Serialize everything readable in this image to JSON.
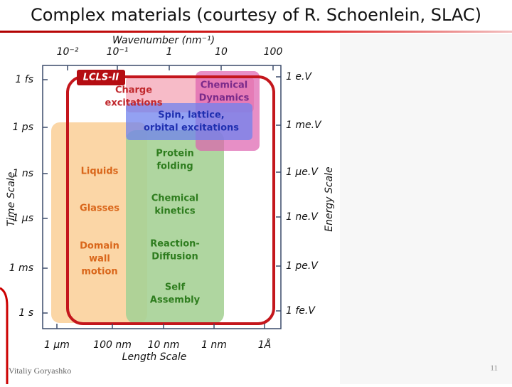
{
  "header": {
    "title": "Complex materials (courtesy of R. Schoenlein, SLAC)"
  },
  "diagram": {
    "top_axis": {
      "label": "Wavenumber (nm⁻¹)",
      "ticks": [
        "10⁻²",
        "10⁻¹",
        "1",
        "10",
        "100"
      ]
    },
    "left_axis": {
      "label": "Time Scale",
      "ticks": [
        "1 fs",
        "1 ps",
        "1 ns",
        "1 μs",
        "1 ms",
        "1 s"
      ]
    },
    "right_axis": {
      "label": "Energy Scale",
      "ticks": [
        "1 e.V",
        "1 me.V",
        "1 μe.V",
        "1 ne.V",
        "1 pe.V",
        "1 fe.V"
      ]
    },
    "bottom_axis": {
      "label": "Length Scale",
      "ticks": [
        "1 μm",
        "100 nm",
        "10 nm",
        "1 nm",
        "1Å"
      ]
    },
    "facility": "LCLS-II",
    "regions": [
      {
        "label": [
          "Charge",
          "excitations"
        ]
      },
      {
        "label": [
          "Chemical",
          "Dynamics"
        ]
      },
      {
        "label": [
          "Spin, lattice,",
          "orbital excitations"
        ]
      },
      {
        "label": [
          "Protein",
          "folding"
        ]
      },
      {
        "label": [
          "Liquids"
        ]
      },
      {
        "label": [
          "Glasses"
        ]
      },
      {
        "label": [
          "Domain",
          "wall",
          "motion"
        ]
      },
      {
        "label": [
          "Chemical",
          "kinetics"
        ]
      },
      {
        "label": [
          "Reaction-",
          "Diffusion"
        ]
      },
      {
        "label": [
          "Self",
          "Assembly"
        ]
      }
    ]
  },
  "footer": {
    "author": "Vitaliy Goryashko",
    "page": "11"
  }
}
